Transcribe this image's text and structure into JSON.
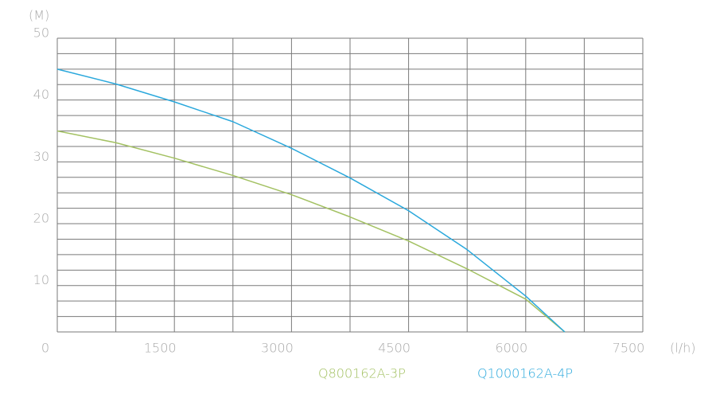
{
  "chart_data": {
    "type": "line",
    "y_unit": "(M)",
    "x_unit": "(l/h)",
    "x": [
      0,
      750,
      1500,
      2250,
      3000,
      3750,
      4500,
      5250,
      6000,
      6500
    ],
    "series": [
      {
        "name": "Q800162A-3P",
        "color": "#a3c162",
        "values": [
          35,
          33.1,
          30.6,
          27.8,
          24.7,
          21.1,
          17.2,
          12.7,
          7.8,
          2.5
        ]
      },
      {
        "name": "Q1000162A-4P",
        "color": "#2aa8dc",
        "values": [
          45,
          42.6,
          39.7,
          36.5,
          32.2,
          27.4,
          22.1,
          15.8,
          8.3,
          2.5
        ]
      }
    ],
    "xlim": [
      0,
      7500
    ],
    "xticks": [
      0,
      1500,
      3000,
      4500,
      6000,
      7500
    ],
    "x_grid": [
      0,
      750,
      1500,
      2250,
      3000,
      3750,
      4500,
      5250,
      6000,
      6750,
      7500
    ],
    "ylim": [
      2.5,
      50
    ],
    "yticks": [
      10,
      20,
      30,
      40,
      50
    ],
    "y_grid": [
      2.5,
      5,
      7.5,
      10,
      12.5,
      15,
      17.5,
      20,
      22.5,
      25,
      27.5,
      30,
      32.5,
      35,
      37.5,
      40,
      42.5,
      45,
      47.5,
      50
    ],
    "grid": true
  }
}
